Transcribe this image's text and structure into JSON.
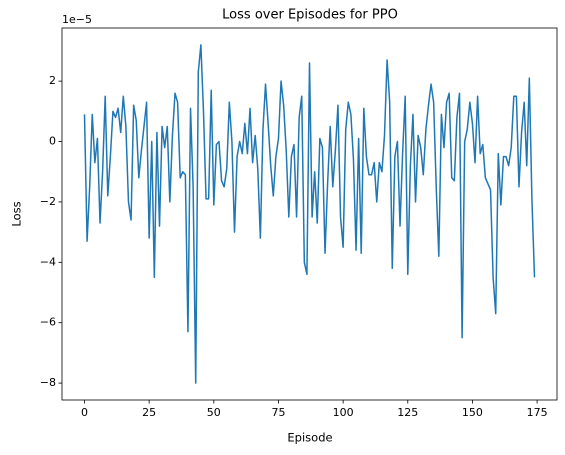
{
  "chart_data": {
    "type": "line",
    "title": "Loss over Episodes for PPO",
    "x_label": "Episode",
    "y_label": "Loss",
    "y_offset_label": "1e−5",
    "x": [
      0,
      1,
      2,
      3,
      4,
      5,
      6,
      7,
      8,
      9,
      10,
      11,
      12,
      13,
      14,
      15,
      16,
      17,
      18,
      19,
      20,
      21,
      22,
      23,
      24,
      25,
      26,
      27,
      28,
      29,
      30,
      31,
      32,
      33,
      34,
      35,
      36,
      37,
      38,
      39,
      40,
      41,
      42,
      43,
      44,
      45,
      46,
      47,
      48,
      49,
      50,
      51,
      52,
      53,
      54,
      55,
      56,
      57,
      58,
      59,
      60,
      61,
      62,
      63,
      64,
      65,
      66,
      67,
      68,
      69,
      70,
      71,
      72,
      73,
      74,
      75,
      76,
      77,
      78,
      79,
      80,
      81,
      82,
      83,
      84,
      85,
      86,
      87,
      88,
      89,
      90,
      91,
      92,
      93,
      94,
      95,
      96,
      97,
      98,
      99,
      100,
      101,
      102,
      103,
      104,
      105,
      106,
      107,
      108,
      109,
      110,
      111,
      112,
      113,
      114,
      115,
      116,
      117,
      118,
      119,
      120,
      121,
      122,
      123,
      124,
      125,
      126,
      127,
      128,
      129,
      130,
      131,
      132,
      133,
      134,
      135,
      136,
      137,
      138,
      139,
      140,
      141,
      142,
      143,
      144,
      145,
      146,
      147,
      148,
      149,
      150,
      151,
      152,
      153,
      154,
      155,
      156,
      157,
      158,
      159,
      160,
      161,
      162,
      163,
      164,
      165,
      166,
      167,
      168,
      169,
      170,
      171,
      172,
      173,
      174
    ],
    "series": [
      {
        "name": "Loss",
        "color": "#1f77b4",
        "values": [
          0.9,
          -3.3,
          -1.5,
          0.9,
          -0.7,
          0.1,
          -2.7,
          -1.0,
          1.5,
          -1.8,
          -0.5,
          1.0,
          0.8,
          1.1,
          0.3,
          1.5,
          0.5,
          -2.0,
          -2.6,
          1.2,
          0.7,
          -1.2,
          -0.3,
          0.5,
          1.3,
          -3.2,
          0.0,
          -4.5,
          0.3,
          -2.8,
          0.5,
          -0.2,
          0.5,
          -2.0,
          0.2,
          1.6,
          1.3,
          -1.2,
          -1.0,
          -1.1,
          -6.3,
          1.1,
          -1.5,
          -8.0,
          2.3,
          3.2,
          1.0,
          -1.9,
          -1.9,
          1.7,
          -2.1,
          -0.1,
          0.0,
          -1.3,
          -1.5,
          -0.9,
          1.3,
          0.0,
          -3.0,
          -0.5,
          0.0,
          -0.4,
          0.6,
          -0.4,
          1.1,
          -0.7,
          0.2,
          -0.9,
          -3.2,
          0.4,
          1.9,
          0.6,
          -0.8,
          -1.8,
          -0.5,
          0.1,
          2.0,
          1.2,
          -0.3,
          -2.5,
          -0.5,
          -0.1,
          -2.5,
          0.8,
          1.5,
          -4.0,
          -4.4,
          2.6,
          -2.5,
          -1.0,
          -2.7,
          0.1,
          -0.2,
          -3.7,
          -1.4,
          0.5,
          -1.5,
          -0.3,
          1.2,
          -2.5,
          -3.5,
          0.4,
          1.3,
          0.9,
          -0.6,
          -3.6,
          0.1,
          -3.7,
          1.1,
          -0.5,
          -1.1,
          -1.1,
          -0.7,
          -2.0,
          -0.7,
          -1.0,
          0.2,
          2.7,
          1.3,
          -4.2,
          -0.5,
          0.0,
          -2.8,
          -0.4,
          1.5,
          -4.4,
          -0.8,
          0.9,
          -2.0,
          0.2,
          -0.2,
          -1.1,
          0.4,
          1.2,
          1.9,
          1.3,
          -1.5,
          -3.8,
          0.9,
          -0.2,
          1.3,
          1.6,
          -1.2,
          -1.3,
          0.8,
          1.6,
          -6.5,
          0.0,
          0.4,
          1.3,
          0.6,
          -0.7,
          1.5,
          -0.4,
          -0.1,
          -1.2,
          -1.4,
          -1.6,
          -4.5,
          -5.7,
          -0.4,
          -2.1,
          -0.5,
          -0.5,
          -0.8,
          -0.2,
          1.5,
          1.5,
          -1.5,
          0.3,
          1.3,
          -0.8,
          2.1,
          -1.9,
          -4.5
        ]
      }
    ],
    "xlim": [
      -8.7,
      182.7
    ],
    "ylim": [
      -8.56,
      3.76
    ],
    "xticks": [
      0,
      25,
      50,
      75,
      100,
      125,
      150,
      175
    ],
    "yticks": [
      {
        "value": -8,
        "label": "−8"
      },
      {
        "value": -6,
        "label": "−6"
      },
      {
        "value": -4,
        "label": "−4"
      },
      {
        "value": -2,
        "label": "−2"
      },
      0,
      2
    ]
  }
}
